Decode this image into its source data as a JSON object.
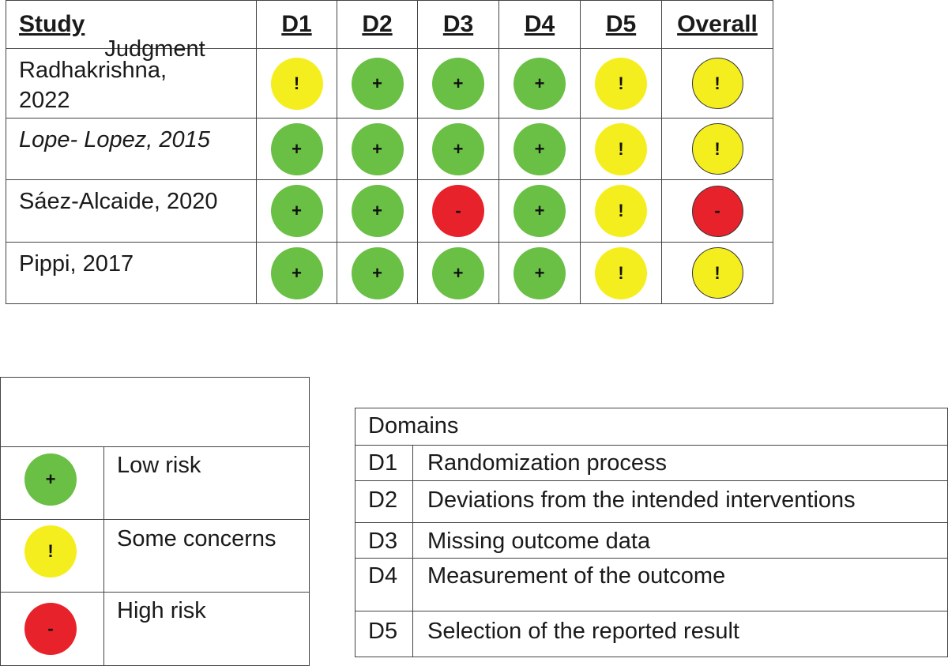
{
  "table": {
    "headers": [
      "Study",
      "D1",
      "D2",
      "D3",
      "D4",
      "D5",
      "Overall"
    ],
    "rows": [
      {
        "study": "Radhakrishna, 2022",
        "judgments": [
          "!",
          "+",
          "+",
          "+",
          "!"
        ],
        "overall": "!"
      },
      {
        "study": "Lope- Lopez, 2015",
        "judgments": [
          "+",
          "+",
          "+",
          "+",
          "!"
        ],
        "overall": "!"
      },
      {
        "study": "Sáez-Alcaide, 2020",
        "judgments": [
          "+",
          "+",
          "-",
          "+",
          "!"
        ],
        "overall": "-"
      },
      {
        "study": "Pippi, 2017",
        "judgments": [
          "+",
          "+",
          "+",
          "+",
          "!"
        ],
        "overall": "!"
      }
    ]
  },
  "judgment_legend": {
    "title": "Judgment",
    "items": [
      {
        "symbol": "+",
        "label": "Low risk",
        "color": "#6abf45"
      },
      {
        "symbol": "!",
        "label": "Some concerns",
        "color": "#f5ee1e"
      },
      {
        "symbol": "-",
        "label": "High risk",
        "color": "#e8222a"
      }
    ]
  },
  "domains_legend": {
    "title": "Domains",
    "items": [
      {
        "code": "D1",
        "description": "Randomization process"
      },
      {
        "code": "D2",
        "description": "Deviations from the intended interventions"
      },
      {
        "code": "D3",
        "description": "Missing outcome data"
      },
      {
        "code": "D4",
        "description": "Measurement of the outcome"
      },
      {
        "code": "D5",
        "description": "Selection of the reported result"
      }
    ]
  }
}
